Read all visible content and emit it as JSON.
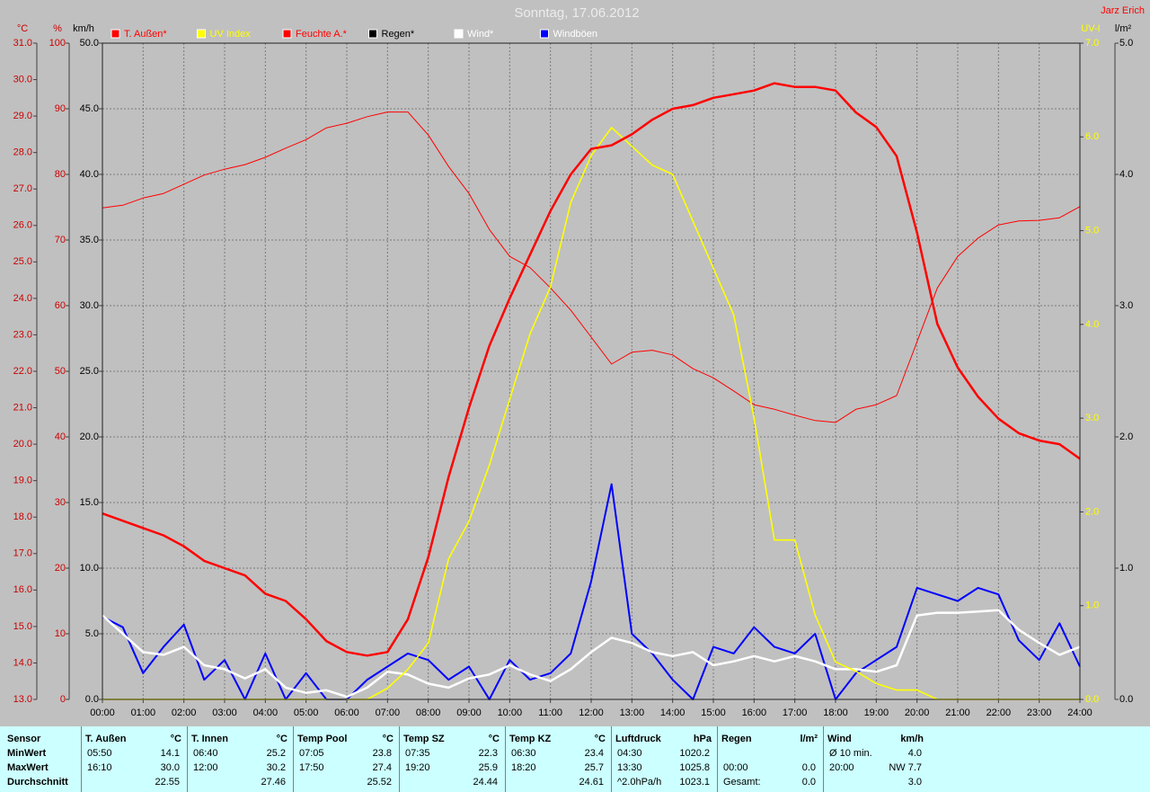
{
  "chart_data": {
    "type": "line",
    "title": "Sonntag, 17.06.2012",
    "author": "Jarz Erich",
    "xlim": [
      0,
      24
    ],
    "xgrid": true,
    "xticks": [
      {
        "value": 0,
        "label": "00:00"
      },
      {
        "value": 1,
        "label": "01:00"
      },
      {
        "value": 2,
        "label": "02:00"
      },
      {
        "value": 3,
        "label": "03:00"
      },
      {
        "value": 4,
        "label": "04:00"
      },
      {
        "value": 5,
        "label": "05:00"
      },
      {
        "value": 6,
        "label": "06:00"
      },
      {
        "value": 7,
        "label": "07:00"
      },
      {
        "value": 8,
        "label": "08:00"
      },
      {
        "value": 9,
        "label": "09:00"
      },
      {
        "value": 10,
        "label": "10:00"
      },
      {
        "value": 11,
        "label": "11:00"
      },
      {
        "value": 12,
        "label": "12:00"
      },
      {
        "value": 13,
        "label": "13:00"
      },
      {
        "value": 14,
        "label": "14:00"
      },
      {
        "value": 15,
        "label": "15:00"
      },
      {
        "value": 16,
        "label": "16:00"
      },
      {
        "value": 17,
        "label": "17:00"
      },
      {
        "value": 18,
        "label": "18:00"
      },
      {
        "value": 19,
        "label": "19:00"
      },
      {
        "value": 20,
        "label": "20:00"
      },
      {
        "value": 21,
        "label": "21:00"
      },
      {
        "value": 22,
        "label": "22:00"
      },
      {
        "value": 23,
        "label": "23:00"
      },
      {
        "value": 24,
        "label": "24:00"
      }
    ],
    "axes": [
      {
        "label": "°C",
        "color": "#cc0000",
        "lim": [
          13,
          31
        ],
        "ticks": [
          {
            "value": 13,
            "label": "13.0"
          },
          {
            "value": 14,
            "label": "14.0"
          },
          {
            "value": 15,
            "label": "15.0"
          },
          {
            "value": 16,
            "label": "16.0"
          },
          {
            "value": 17,
            "label": "17.0"
          },
          {
            "value": 18,
            "label": "18.0"
          },
          {
            "value": 19,
            "label": "19.0"
          },
          {
            "value": 20,
            "label": "20.0"
          },
          {
            "value": 21,
            "label": "21.0"
          },
          {
            "value": 22,
            "label": "22.0"
          },
          {
            "value": 23,
            "label": "23.0"
          },
          {
            "value": 24,
            "label": "24.0"
          },
          {
            "value": 25,
            "label": "25.0"
          },
          {
            "value": 26,
            "label": "26.0"
          },
          {
            "value": 27,
            "label": "27.0"
          },
          {
            "value": 28,
            "label": "28.0"
          },
          {
            "value": 29,
            "label": "29.0"
          },
          {
            "value": 30,
            "label": "30.0"
          },
          {
            "value": 31,
            "label": "31.0"
          }
        ]
      },
      {
        "label": "%",
        "color": "#cc0000",
        "lim": [
          0,
          100
        ],
        "ticks": [
          0,
          10,
          20,
          30,
          40,
          50,
          60,
          70,
          80,
          90,
          100
        ]
      },
      {
        "label": "km/h",
        "color": "#000000",
        "lim": [
          0,
          50
        ],
        "grid": true,
        "ticks": [
          {
            "value": 0,
            "label": "0.0"
          },
          {
            "value": 5,
            "label": "5.0"
          },
          {
            "value": 10,
            "label": "10.0"
          },
          {
            "value": 15,
            "label": "15.0"
          },
          {
            "value": 20,
            "label": "20.0"
          },
          {
            "value": 25,
            "label": "25.0"
          },
          {
            "value": 30,
            "label": "30.0"
          },
          {
            "value": 35,
            "label": "35.0"
          },
          {
            "value": 40,
            "label": "40.0"
          },
          {
            "value": 45,
            "label": "45.0"
          },
          {
            "value": 50,
            "label": "50.0"
          }
        ]
      },
      {
        "label": "UV-I",
        "color": "#ffff00",
        "lim": [
          0,
          7
        ],
        "ticks": [
          {
            "value": 0,
            "label": "0.0"
          },
          {
            "value": 1,
            "label": "1.0"
          },
          {
            "value": 2,
            "label": "2.0"
          },
          {
            "value": 3,
            "label": "3.0"
          },
          {
            "value": 4,
            "label": "4.0"
          },
          {
            "value": 5,
            "label": "5.0"
          },
          {
            "value": 6,
            "label": "6.0"
          },
          {
            "value": 7,
            "label": "7.0"
          }
        ]
      },
      {
        "label": "l/m²",
        "color": "#000000",
        "lim": [
          0,
          5
        ],
        "ticks": [
          {
            "value": 0,
            "label": "0.0"
          },
          {
            "value": 1,
            "label": "1.0"
          },
          {
            "value": 2,
            "label": "2.0"
          },
          {
            "value": 3,
            "label": "3.0"
          },
          {
            "value": 4,
            "label": "4.0"
          },
          {
            "value": 5,
            "label": "5.0"
          }
        ]
      }
    ],
    "x": [
      0,
      0.5,
      1,
      1.5,
      2,
      2.5,
      3,
      3.5,
      4,
      4.5,
      5,
      5.5,
      6,
      6.5,
      7,
      7.5,
      8,
      8.5,
      9,
      9.5,
      10,
      10.5,
      11,
      11.5,
      12,
      12.5,
      13,
      13.5,
      14,
      14.5,
      15,
      15.5,
      16,
      16.5,
      17,
      17.5,
      18,
      18.5,
      19,
      19.5,
      20,
      20.5,
      21,
      21.5,
      22,
      22.5,
      23,
      23.5,
      24
    ],
    "series": [
      {
        "name": "T. Außen*",
        "color": "#ff0000",
        "axis": 0,
        "values": [
          18.1,
          17.9,
          17.7,
          17.5,
          17.2,
          16.8,
          16.6,
          16.4,
          15.9,
          15.7,
          15.2,
          14.6,
          14.3,
          14.2,
          14.3,
          15.2,
          16.9,
          19.1,
          21.0,
          22.7,
          24.0,
          25.2,
          26.4,
          27.4,
          28.1,
          28.2,
          28.5,
          28.9,
          29.2,
          29.3,
          29.5,
          29.6,
          29.7,
          29.9,
          29.8,
          29.8,
          29.7,
          29.1,
          28.7,
          27.9,
          25.8,
          23.3,
          22.1,
          21.3,
          20.7,
          20.3,
          20.1,
          20.0,
          19.6
        ]
      },
      {
        "name": "UV Index",
        "color": "#ffff00",
        "axis": 3,
        "values": [
          0,
          0,
          0,
          0,
          0,
          0,
          0,
          0,
          0,
          0,
          0,
          0,
          0,
          0,
          0.12,
          0.32,
          0.6,
          1.5,
          1.9,
          2.5,
          3.2,
          3.9,
          4.4,
          5.3,
          5.8,
          6.1,
          5.9,
          5.7,
          5.6,
          5.1,
          4.6,
          4.1,
          3.0,
          1.7,
          1.7,
          0.9,
          0.4,
          0.3,
          0.17,
          0.1,
          0.1,
          0,
          0,
          0,
          0,
          0,
          0,
          0,
          0
        ]
      },
      {
        "name": "Feuchte A.*",
        "color": "#ff0000",
        "axis": 1,
        "values": [
          74.9,
          75.3,
          76.4,
          77.1,
          78.5,
          79.9,
          80.8,
          81.5,
          82.6,
          84.0,
          85.3,
          87.1,
          87.8,
          88.8,
          89.5,
          89.5,
          86.0,
          81.2,
          77.1,
          71.6,
          67.5,
          65.8,
          62.7,
          59.3,
          55.2,
          51.1,
          52.9,
          53.2,
          52.5,
          50.4,
          49.0,
          47.0,
          44.9,
          44.2,
          43.3,
          42.5,
          42.2,
          44.2,
          44.9,
          46.3,
          54.5,
          62.7,
          67.5,
          70.3,
          72.3,
          72.9,
          73.0,
          73.4,
          75.1
        ]
      },
      {
        "name": "Regen*",
        "color": "#000000",
        "axis": 4,
        "values": [
          0,
          0,
          0,
          0,
          0,
          0,
          0,
          0,
          0,
          0,
          0,
          0,
          0,
          0,
          0,
          0,
          0,
          0,
          0,
          0,
          0,
          0,
          0,
          0,
          0,
          0,
          0,
          0,
          0,
          0,
          0,
          0,
          0,
          0,
          0,
          0,
          0,
          0,
          0,
          0,
          0,
          0,
          0,
          0,
          0,
          0,
          0,
          0,
          0
        ]
      },
      {
        "name": "Wind*",
        "color": "#ffffff",
        "axis": 2,
        "values": [
          6.4,
          5.0,
          3.6,
          3.4,
          4.0,
          2.6,
          2.3,
          1.6,
          2.3,
          0.9,
          0.5,
          0.7,
          0.2,
          0.9,
          2.1,
          1.9,
          1.2,
          0.9,
          1.6,
          1.9,
          2.6,
          1.9,
          1.4,
          2.3,
          3.6,
          4.7,
          4.3,
          3.6,
          3.3,
          3.6,
          2.6,
          2.9,
          3.3,
          2.9,
          3.3,
          2.9,
          2.3,
          2.3,
          2.1,
          2.6,
          6.4,
          6.6,
          6.6,
          6.7,
          6.8,
          5.3,
          4.3,
          3.4,
          4.0
        ]
      },
      {
        "name": "Windböen",
        "color": "#0000ff",
        "axis": 2,
        "values": [
          6.3,
          5.5,
          2.0,
          4.0,
          5.7,
          1.5,
          3.0,
          0,
          3.5,
          0,
          2.0,
          0,
          0,
          1.5,
          2.5,
          3.5,
          3.0,
          1.5,
          2.5,
          0,
          3.0,
          1.5,
          2.0,
          3.5,
          9.0,
          16.4,
          5.0,
          3.5,
          1.5,
          0,
          4.0,
          3.5,
          5.5,
          4.0,
          3.5,
          5.0,
          0,
          2.0,
          3.0,
          4.0,
          8.5,
          8.0,
          7.5,
          8.5,
          8.0,
          4.5,
          3.0,
          5.8,
          2.5
        ]
      }
    ]
  },
  "stats": {
    "corner": "Sensor",
    "row_labels": [
      "MinWert",
      "MaxWert",
      "Durchschnitt"
    ],
    "columns": [
      {
        "name": "T. Außen",
        "unit": "°C",
        "cells": [
          [
            "05:50",
            "14.1"
          ],
          [
            "16:10",
            "30.0"
          ],
          [
            null,
            "22.55"
          ]
        ]
      },
      {
        "name": "T. Innen",
        "unit": "°C",
        "cells": [
          [
            "06:40",
            "25.2"
          ],
          [
            "12:00",
            "30.2"
          ],
          [
            null,
            "27.46"
          ]
        ]
      },
      {
        "name": "Temp Pool",
        "unit": "°C",
        "cells": [
          [
            "07:05",
            "23.8"
          ],
          [
            "17:50",
            "27.4"
          ],
          [
            null,
            "25.52"
          ]
        ]
      },
      {
        "name": "Temp SZ",
        "unit": "°C",
        "cells": [
          [
            "07:35",
            "22.3"
          ],
          [
            "19:20",
            "25.9"
          ],
          [
            null,
            "24.44"
          ]
        ]
      },
      {
        "name": "Temp KZ",
        "unit": "°C",
        "cells": [
          [
            "06:30",
            "23.4"
          ],
          [
            "18:20",
            "25.7"
          ],
          [
            null,
            "24.61"
          ]
        ]
      },
      {
        "name": "Luftdruck",
        "unit": "hPa",
        "cells": [
          [
            "04:30",
            "1020.2"
          ],
          [
            "13:30",
            "1025.8"
          ],
          [
            "^2.0hPa/h",
            "1023.1"
          ]
        ]
      },
      {
        "name": "Regen",
        "unit": "l/m²",
        "cells": [
          [
            null,
            null
          ],
          [
            "00:00",
            "0.0"
          ],
          [
            "Gesamt:",
            "0.0"
          ]
        ]
      },
      {
        "name": "Wind",
        "unit": "km/h",
        "cells": [
          [
            "Ø 10 min.",
            "4.0"
          ],
          [
            "20:00",
            "NW 7.7"
          ],
          [
            null,
            "3.0"
          ]
        ]
      }
    ]
  }
}
